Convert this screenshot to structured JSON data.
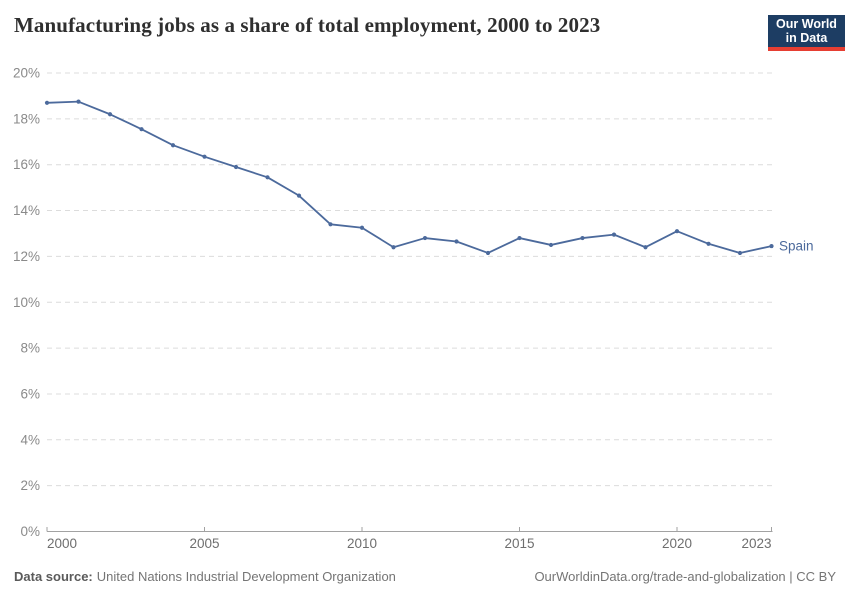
{
  "header": {
    "title": "Manufacturing jobs as a share of total employment, 2000 to 2023",
    "logo": {
      "line1": "Our World",
      "line2": "in Data"
    }
  },
  "chart_data": {
    "type": "line",
    "title": "Manufacturing jobs as a share of total employment, 2000 to 2023",
    "x": [
      2000,
      2001,
      2002,
      2003,
      2004,
      2005,
      2006,
      2007,
      2008,
      2009,
      2010,
      2011,
      2012,
      2013,
      2014,
      2015,
      2016,
      2017,
      2018,
      2019,
      2020,
      2021,
      2022,
      2023
    ],
    "series": [
      {
        "name": "Spain",
        "color": "#4c6a9c",
        "values": [
          18.7,
          18.75,
          18.2,
          17.55,
          16.85,
          16.35,
          15.9,
          15.45,
          14.65,
          13.4,
          13.25,
          12.4,
          12.8,
          12.65,
          12.15,
          12.8,
          12.5,
          12.8,
          12.95,
          12.4,
          13.1,
          12.55,
          12.15,
          12.45
        ]
      }
    ],
    "ylim": [
      0,
      20
    ],
    "yticks": [
      0,
      2,
      4,
      6,
      8,
      10,
      12,
      14,
      16,
      18,
      20
    ],
    "ytick_suffix": "%",
    "xticks": [
      2000,
      2005,
      2010,
      2015,
      2020,
      2023
    ],
    "grid": "horizontal-dashed",
    "legend_position": "end-of-line-label"
  },
  "footer": {
    "data_source_label": "Data source:",
    "data_source": "United Nations Industrial Development Organization",
    "credit": "OurWorldinData.org/trade-and-globalization | CC BY"
  },
  "colors": {
    "series": "#4c6a9c",
    "grid": "#dcdcdc",
    "axis": "#a2a2a2",
    "tick_label": "#8a8a8a",
    "x_tick_label": "#6e6e6e",
    "title": "#2f2f2f",
    "footer": "#757575",
    "footer_label": "#5a5a5a",
    "logo_bg": "#1d3d63",
    "logo_accent": "#e63e32"
  }
}
